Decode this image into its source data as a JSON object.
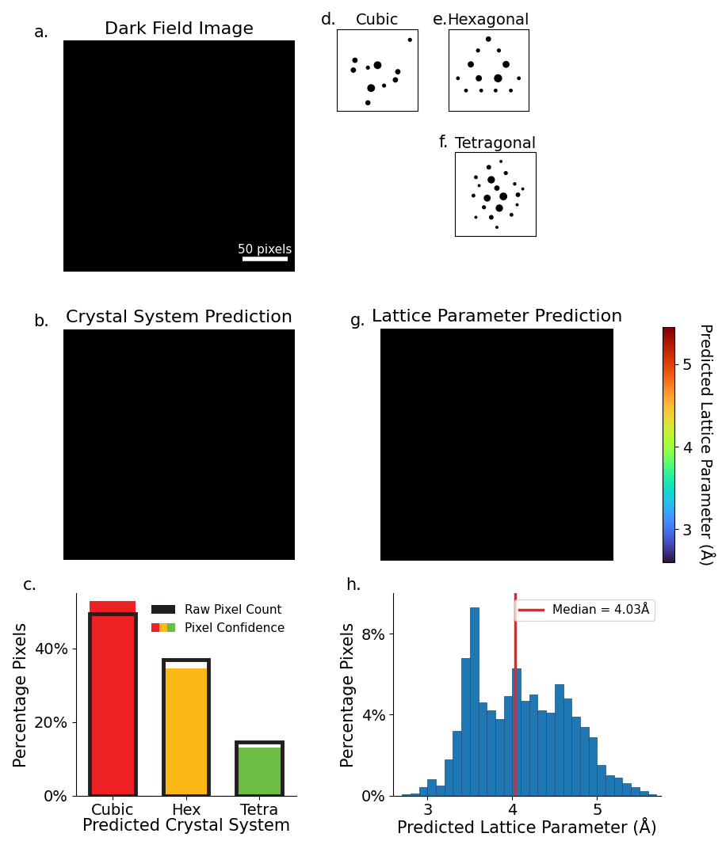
{
  "panels": {
    "a": {
      "label": "a.",
      "title": "Dark Field Image",
      "type": "image",
      "scale_bar": {
        "length": 50,
        "label": "50 pixels"
      }
    },
    "b": {
      "label": "b.",
      "title": "Crystal System Prediction",
      "type": "image"
    },
    "d": {
      "label": "d.",
      "title": "Cubic",
      "type": "diffraction_pattern"
    },
    "e": {
      "label": "e.",
      "title": "Hexagonal",
      "type": "diffraction_pattern"
    },
    "f": {
      "label": "f.",
      "title": "Tetragonal",
      "type": "diffraction_pattern"
    },
    "g": {
      "label": "g.",
      "title": "Lattice Parameter Prediction",
      "type": "image",
      "colorbar": {
        "label": "Predicted Lattice Parameter (Å)",
        "range": [
          2.6,
          5.45
        ],
        "ticks": [
          3,
          4,
          5
        ]
      }
    }
  },
  "chart_data": [
    {
      "label": "c.",
      "type": "bar",
      "categories": [
        "Cubic",
        "Hex",
        "Tetra"
      ],
      "xlabel": "Predicted Crystal System",
      "ylabel": "Percentage Pixels",
      "series": [
        {
          "name": "Raw Pixel Count",
          "color": "#231f20",
          "values": [
            49.5,
            37,
            14.5
          ]
        },
        {
          "name": "Pixel Confidence",
          "colors": [
            "#ed2024",
            "#fbb917",
            "#6bbd45"
          ],
          "values": [
            53,
            34.5,
            13
          ]
        }
      ],
      "ylim": [
        0,
        55
      ],
      "yticks": [
        {
          "value": 0,
          "label": "0%"
        },
        {
          "value": 20,
          "label": "20%"
        },
        {
          "value": 40,
          "label": "40%"
        }
      ],
      "legend": "upper right"
    },
    {
      "label": "h.",
      "type": "histogram",
      "bins": [
        2.7,
        2.8,
        2.9,
        3.0,
        3.1,
        3.2,
        3.3,
        3.4,
        3.5,
        3.6,
        3.7,
        3.8,
        3.9,
        4.0,
        4.1,
        4.2,
        4.3,
        4.4,
        4.5,
        4.6,
        4.7,
        4.8,
        4.9,
        5.0,
        5.1,
        5.2,
        5.3,
        5.4,
        5.5,
        5.6,
        5.7
      ],
      "values": [
        0.05,
        0.1,
        0.4,
        0.8,
        0.5,
        1.8,
        3.2,
        6.8,
        9.3,
        4.6,
        4.2,
        3.8,
        4.9,
        6.3,
        4.7,
        5.0,
        4.2,
        4.1,
        5.5,
        4.8,
        3.9,
        3.4,
        2.9,
        1.5,
        1.0,
        0.9,
        0.6,
        0.4,
        0.2,
        0.05
      ],
      "color": "#1f77b4",
      "xlabel": "Predicted Lattice Parameter (Å)",
      "ylabel": "Percentage Pixels",
      "xlim": [
        2.6,
        5.75
      ],
      "xticks": [
        3,
        4,
        5
      ],
      "ylim": [
        0,
        10
      ],
      "yticks": [
        {
          "value": 0,
          "label": "0%"
        },
        {
          "value": 4,
          "label": "4%"
        },
        {
          "value": 8,
          "label": "8%"
        }
      ],
      "median": {
        "value": 4.03,
        "name": "Median = 4.03Å",
        "color": "#e8262a"
      },
      "legend": "upper right"
    }
  ]
}
